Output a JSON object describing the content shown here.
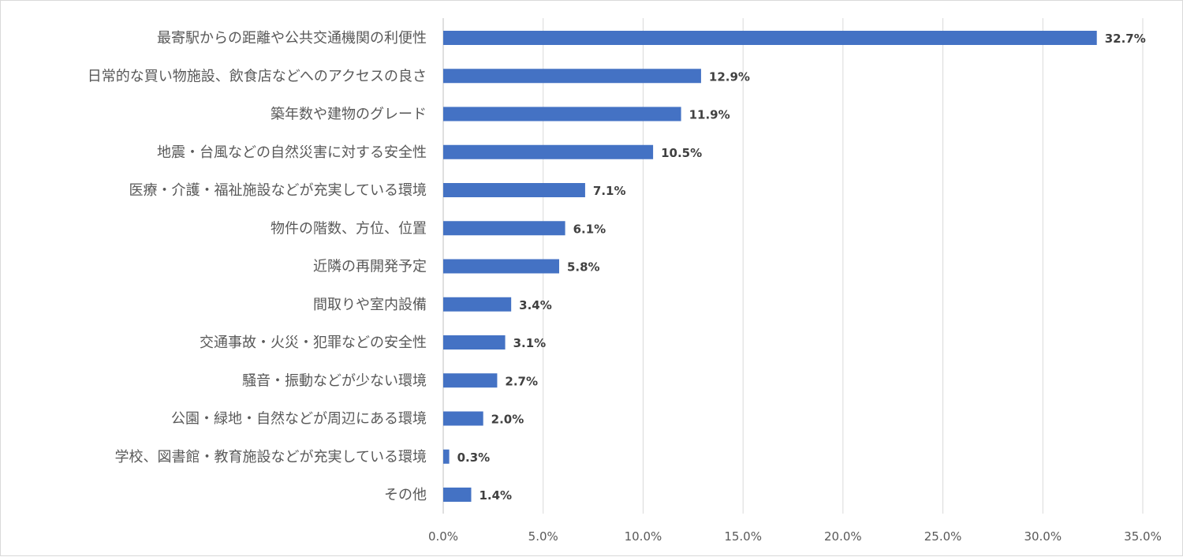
{
  "chart_data": {
    "type": "bar",
    "orientation": "horizontal",
    "title": "",
    "xlabel": "",
    "ylabel": "",
    "xlim": [
      0,
      35
    ],
    "grid": true,
    "bar_color": "#4472C4",
    "x_ticks": [
      "0.0%",
      "5.0%",
      "10.0%",
      "15.0%",
      "20.0%",
      "25.0%",
      "30.0%",
      "35.0%"
    ],
    "categories": [
      "最寄駅からの距離や公共交通機関の利便性",
      "日常的な買い物施設、飲食店などへのアクセスの良さ",
      "築年数や建物のグレード",
      "地震・台風などの自然災害に対する安全性",
      "医療・介護・福祉施設などが充実している環境",
      "物件の階数、方位、位置",
      "近隣の再開発予定",
      "間取りや室内設備",
      "交通事故・火災・犯罪などの安全性",
      "騒音・振動などが少ない環境",
      "公園・緑地・自然などが周辺にある環境",
      "学校、図書館・教育施設などが充実している環境",
      "その他"
    ],
    "values": [
      32.7,
      12.9,
      11.9,
      10.5,
      7.1,
      6.1,
      5.8,
      3.4,
      3.1,
      2.7,
      2.0,
      0.3,
      1.4
    ],
    "value_labels": [
      "32.7%",
      "12.9%",
      "11.9%",
      "10.5%",
      "7.1%",
      "6.1%",
      "5.8%",
      "3.4%",
      "3.1%",
      "2.7%",
      "2.0%",
      "0.3%",
      "1.4%"
    ]
  }
}
